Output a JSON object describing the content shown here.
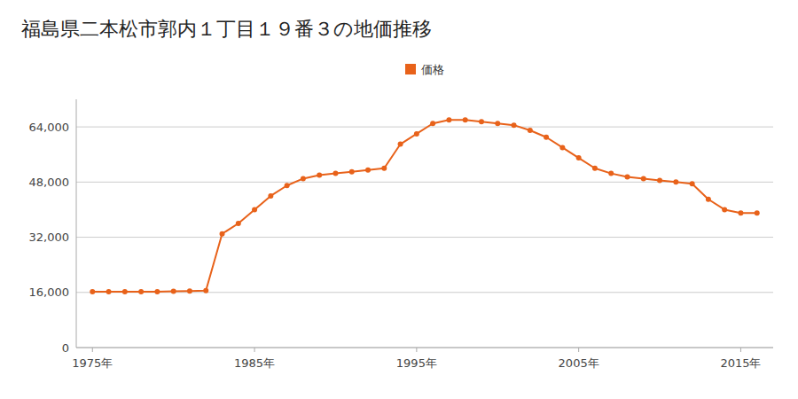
{
  "chart_data": {
    "type": "line",
    "title": "福島県二本松市郭内１丁目１９番３の地価推移",
    "x": [
      1975,
      1976,
      1977,
      1978,
      1979,
      1980,
      1981,
      1982,
      1983,
      1984,
      1985,
      1986,
      1987,
      1988,
      1989,
      1990,
      1991,
      1992,
      1993,
      1994,
      1995,
      1996,
      1997,
      1998,
      1999,
      2000,
      2001,
      2002,
      2003,
      2004,
      2005,
      2006,
      2007,
      2008,
      2009,
      2010,
      2011,
      2012,
      2013,
      2014,
      2015,
      2016
    ],
    "series": [
      {
        "name": "価格",
        "color": "#e8621a",
        "marker": "circle",
        "values": [
          16200,
          16200,
          16200,
          16200,
          16200,
          16300,
          16400,
          16500,
          33000,
          36000,
          40000,
          44000,
          47000,
          49000,
          50000,
          50500,
          51000,
          51500,
          52000,
          59000,
          62000,
          65000,
          66000,
          66000,
          65500,
          65000,
          64500,
          63000,
          61000,
          58000,
          55000,
          52000,
          50500,
          49500,
          49000,
          48500,
          48000,
          47500,
          43000,
          40000,
          39000,
          39000
        ]
      }
    ],
    "xlim": [
      1974,
      2017
    ],
    "xticks": [
      {
        "value": 1975,
        "label": "1975年"
      },
      {
        "value": 1985,
        "label": "1985年"
      },
      {
        "value": 1995,
        "label": "1995年"
      },
      {
        "value": 2005,
        "label": "2005年"
      },
      {
        "value": 2015,
        "label": "2015年"
      }
    ],
    "ylim": [
      0,
      72000
    ],
    "yticks": [
      0,
      {
        "value": 16000,
        "label": "16,000"
      },
      {
        "value": 32000,
        "label": "32,000"
      },
      {
        "value": 48000,
        "label": "48,000"
      },
      {
        "value": 64000,
        "label": "64,000"
      }
    ],
    "grid": true,
    "legend": "top"
  }
}
